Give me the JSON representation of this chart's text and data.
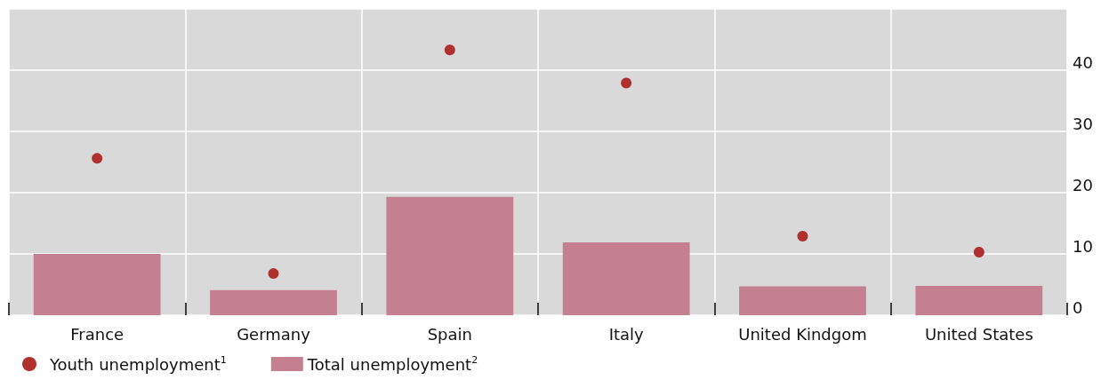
{
  "chart_data": {
    "type": "bar",
    "categories": [
      "France",
      "Germany",
      "Spain",
      "Italy",
      "United Kindgom",
      "United States"
    ],
    "series": [
      {
        "name": "Youth unemployment$^{1}$",
        "type": "scatter",
        "color": "#b03030",
        "marker": "circle",
        "values": [
          25.6,
          6.8,
          43.3,
          37.9,
          12.9,
          10.3
        ]
      },
      {
        "name": "Total unemployment$^{2}$",
        "color": "#c48090",
        "values": [
          10.0,
          4.1,
          19.3,
          11.9,
          4.7,
          4.8
        ]
      }
    ],
    "ylim": [
      0,
      50
    ],
    "yticks": [
      0,
      10,
      20,
      30,
      40,
      {
        "value": 50,
        "label": null
      }
    ],
    "grid": true,
    "legend": "bottom left"
  }
}
